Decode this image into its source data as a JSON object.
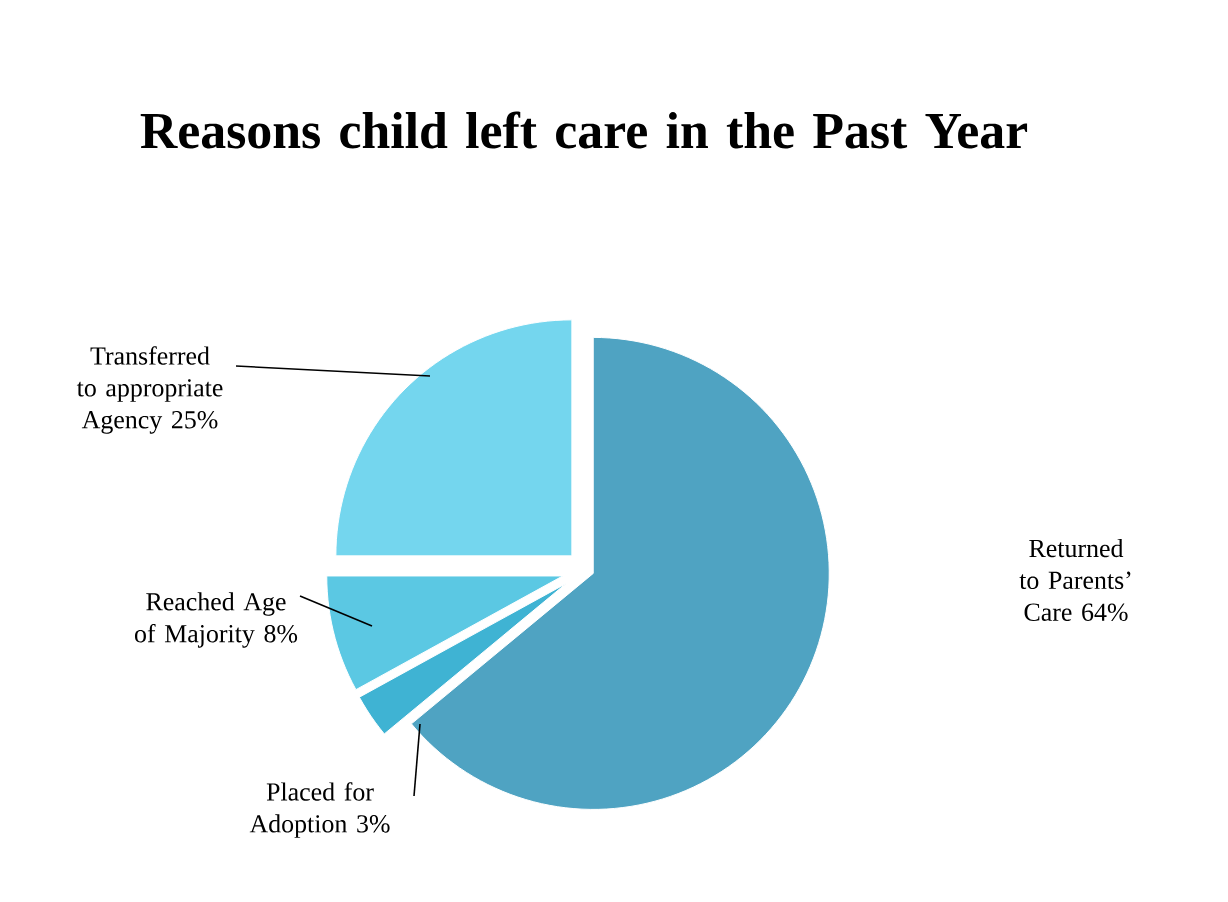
{
  "chart_data": {
    "type": "pie",
    "title": "Reasons child left care in the Past Year",
    "categories": [
      "Returned to Parents’ Care",
      "Placed for Adoption",
      "Reached Age of Majority",
      "Transferred to appropriate Agency"
    ],
    "values": [
      64,
      3,
      8,
      25
    ],
    "value_labels": [
      "64%",
      "3%",
      "8%",
      "25%"
    ],
    "colors": [
      "#4fa3c2",
      "#3fb3d3",
      "#5bc8e3",
      "#74d6ee"
    ]
  }
}
